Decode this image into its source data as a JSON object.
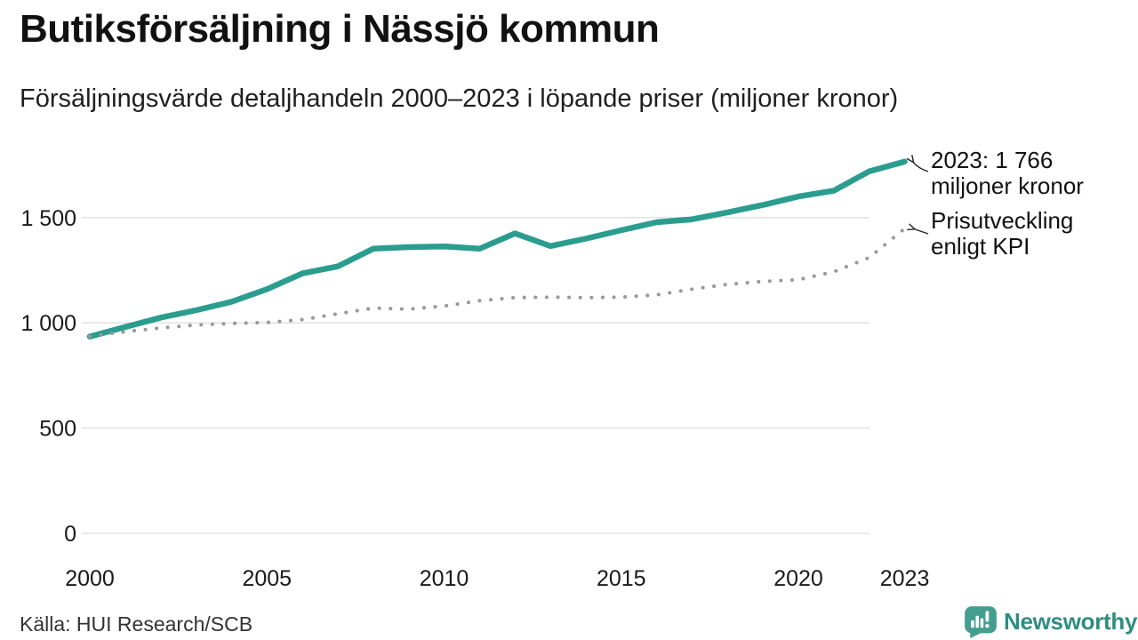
{
  "page": {
    "title": "Butiksförsäljning i Nässjö kommun",
    "subtitle": "Försäljningsvärde detaljhandeln 2000–2023 i löpande priser (miljoner kronor)"
  },
  "chart_data": {
    "type": "line",
    "title": "Butiksförsäljning i Nässjö kommun",
    "subtitle": "Försäljningsvärde detaljhandeln 2000–2023 i löpande priser (miljoner kronor)",
    "unit": "miljoner kronor",
    "grid": "horizontal",
    "xlim": [
      2000,
      2023
    ],
    "ylim": [
      0,
      1850
    ],
    "x": [
      2000,
      2001,
      2002,
      2003,
      2004,
      2005,
      2006,
      2007,
      2008,
      2009,
      2010,
      2011,
      2012,
      2013,
      2014,
      2015,
      2016,
      2017,
      2018,
      2019,
      2020,
      2021,
      2022,
      2023
    ],
    "series": [
      {
        "name": "Butiksförsäljning (löpande priser)",
        "color": "#2a9d8f",
        "line_style": "solid",
        "values": [
          935,
          980,
          1025,
          1060,
          1100,
          1160,
          1235,
          1268,
          1352,
          1360,
          1363,
          1352,
          1425,
          1365,
          1400,
          1440,
          1478,
          1492,
          1525,
          1560,
          1600,
          1628,
          1720,
          1766
        ]
      },
      {
        "name": "Prisutveckling enligt KPI",
        "color": "#98999b",
        "line_style": "dotted",
        "values": [
          935,
          958,
          976,
          990,
          997,
          1002,
          1015,
          1043,
          1070,
          1065,
          1080,
          1105,
          1120,
          1122,
          1120,
          1122,
          1133,
          1160,
          1183,
          1197,
          1205,
          1243,
          1310,
          1448
        ]
      }
    ],
    "yticks": [
      {
        "value": 0,
        "label": "0"
      },
      {
        "value": 500,
        "label": "500"
      },
      {
        "value": 1000,
        "label": "1 000"
      },
      {
        "value": 1500,
        "label": "1 500"
      }
    ],
    "xticks": [
      {
        "value": 2000,
        "label": "2000"
      },
      {
        "value": 2005,
        "label": "2005"
      },
      {
        "value": 2010,
        "label": "2010"
      },
      {
        "value": 2015,
        "label": "2015"
      },
      {
        "value": 2020,
        "label": "2020"
      },
      {
        "value": 2023,
        "label": "2023"
      }
    ],
    "annotations": [
      {
        "line1": "2023: 1 766",
        "line2": "miljoner kronor",
        "series": "Butiksförsäljning (löpande priser)"
      },
      {
        "line1": "Prisutveckling",
        "line2": "enligt KPI",
        "series": "Prisutveckling enligt KPI"
      }
    ]
  },
  "footer": {
    "source": "Källa: HUI Research/SCB",
    "brand_name": "Newsworthy",
    "brand_color": "#2e8d80",
    "brand_icon": "newsworthy-bubble-barchart-icon",
    "brand_icon_color": "#449e90"
  }
}
